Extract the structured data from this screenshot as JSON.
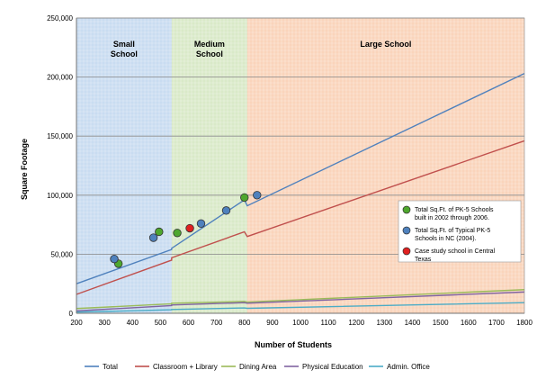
{
  "chart_data": {
    "type": "line",
    "xlabel": "Number of Students",
    "ylabel": "Square Footage",
    "xlim": [
      200,
      1800
    ],
    "ylim": [
      0,
      250000
    ],
    "x_ticks": [
      200,
      300,
      400,
      500,
      600,
      700,
      800,
      900,
      1000,
      1100,
      1200,
      1300,
      1400,
      1500,
      1600,
      1700,
      1800
    ],
    "y_ticks": [
      0,
      50000,
      100000,
      150000,
      200000,
      250000
    ],
    "x_tick_labels": [
      "200",
      "300",
      "400",
      "500",
      "600",
      "700",
      "800",
      "900",
      "1000",
      "1100",
      "1200",
      "1300",
      "1400",
      "1500",
      "1600",
      "1700",
      "1800"
    ],
    "y_tick_labels": [
      "0",
      "50,000",
      "100,000",
      "150,000",
      "200,000",
      "250,000"
    ],
    "grid": true,
    "zones": [
      {
        "label_lines": [
          "Small",
          "School"
        ],
        "x0": 200,
        "x1": 540,
        "color": "#9cbfe6"
      },
      {
        "label_lines": [
          "Medium",
          "School"
        ],
        "x0": 540,
        "x1": 810,
        "color": "#b9d79a"
      },
      {
        "label_lines": [
          "Large School"
        ],
        "x0": 810,
        "x1": 1800,
        "color": "#f5b183"
      }
    ],
    "series": [
      {
        "name": "Total",
        "color": "#4f81bd",
        "x": [
          200,
          540,
          540,
          800,
          810,
          1800
        ],
        "y": [
          25000,
          54000,
          55000,
          96000,
          91000,
          203000
        ]
      },
      {
        "name": "Classroom + Library",
        "color": "#c0504d",
        "x": [
          200,
          540,
          540,
          800,
          810,
          1800
        ],
        "y": [
          16000,
          45000,
          47000,
          69000,
          65000,
          146000
        ]
      },
      {
        "name": "Dining Area",
        "color": "#9bbb59",
        "x": [
          200,
          540,
          540,
          800,
          810,
          1800
        ],
        "y": [
          4000,
          8000,
          8500,
          10000,
          9500,
          20000
        ]
      },
      {
        "name": "Physical Education",
        "color": "#8064a2",
        "x": [
          200,
          540,
          540,
          800,
          810,
          1800
        ],
        "y": [
          2000,
          6500,
          7000,
          9000,
          8500,
          18000
        ]
      },
      {
        "name": "Admin. Office",
        "color": "#4bacc6",
        "x": [
          200,
          540,
          540,
          800,
          810,
          1800
        ],
        "y": [
          1000,
          3000,
          3200,
          4500,
          4200,
          9000
        ]
      }
    ],
    "point_groups": [
      {
        "label_lines": [
          "Total Sq.Ft. of PK-5 Schools",
          "built  in 2002 through 2006."
        ],
        "color": "#4ea72e",
        "points": [
          {
            "x": 350,
            "y": 42000
          },
          {
            "x": 495,
            "y": 69000
          },
          {
            "x": 560,
            "y": 68000
          },
          {
            "x": 800,
            "y": 98000
          }
        ]
      },
      {
        "label_lines": [
          "Total Sq.Ft. of Typical  PK-5",
          "Schools in NC (2004)."
        ],
        "color": "#4f81bd",
        "points": [
          {
            "x": 335,
            "y": 46000
          },
          {
            "x": 475,
            "y": 64000
          },
          {
            "x": 645,
            "y": 76000
          },
          {
            "x": 735,
            "y": 87000
          },
          {
            "x": 845,
            "y": 100000
          }
        ]
      },
      {
        "label_lines": [
          "Case study school in Central",
          "Texas"
        ],
        "color": "#e02020",
        "points": [
          {
            "x": 605,
            "y": 72000
          }
        ]
      }
    ],
    "legend_position": "bottom"
  }
}
